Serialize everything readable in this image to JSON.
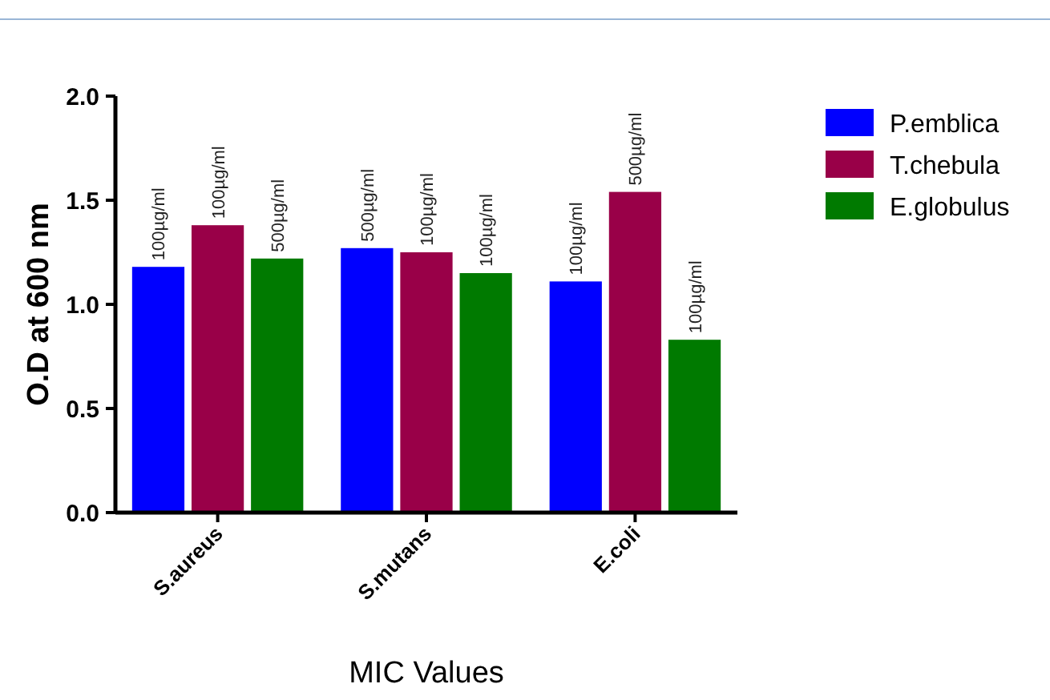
{
  "chart_data": {
    "type": "bar",
    "xlabel": "MIC Values",
    "ylabel": "O.D at 600 nm",
    "categories": [
      "S.aureus",
      "S.mutans",
      "E.coli"
    ],
    "series": [
      {
        "name": "P.emblica",
        "color": "#0000ff",
        "values": [
          1.18,
          1.27,
          1.11
        ]
      },
      {
        "name": "T.chebula",
        "color": "#990048",
        "values": [
          1.38,
          1.25,
          1.54
        ]
      },
      {
        "name": "E.globulus",
        "color": "#007a00",
        "values": [
          1.22,
          1.15,
          0.83
        ]
      }
    ],
    "annotations": [
      "100µg/ml",
      "500µg/ml",
      "100µg/ml",
      "100µg/ml",
      "100µg/ml",
      "500µg/ml",
      "500µg/ml",
      "100µg/ml",
      "100µg/ml"
    ],
    "ylim": [
      0,
      2.0
    ],
    "yticks": [
      {
        "value": 0,
        "label": "0.0"
      },
      {
        "value": 0.5,
        "label": "0.5"
      },
      {
        "value": 1,
        "label": "1.0"
      },
      {
        "value": 1.5,
        "label": "1.5"
      },
      {
        "value": 2,
        "label": "2.0"
      }
    ],
    "grid": false,
    "legend": "top right"
  }
}
